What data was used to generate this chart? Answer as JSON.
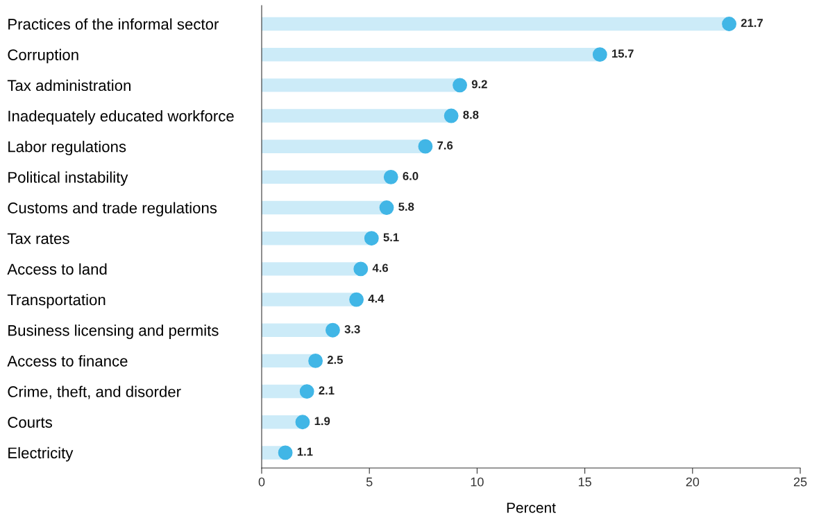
{
  "chart_data": {
    "type": "lollipop",
    "orientation": "horizontal",
    "categories": [
      "Practices of the informal sector",
      "Corruption",
      "Tax administration",
      "Inadequately educated workforce",
      "Labor regulations",
      "Political instability",
      "Customs and trade regulations",
      "Tax rates",
      "Access to land",
      "Transportation",
      "Business licensing and permits",
      "Access to finance",
      "Crime, theft, and disorder",
      "Courts",
      "Electricity"
    ],
    "series": [
      {
        "color": "#41b6e6",
        "values": [
          21.7,
          15.7,
          9.2,
          8.8,
          7.6,
          6.0,
          5.8,
          5.1,
          4.6,
          4.4,
          3.3,
          2.5,
          2.1,
          1.9,
          1.1
        ],
        "value_labels": [
          "21.7",
          "15.7",
          "9.2",
          "8.8",
          "7.6",
          "6.0",
          "5.8",
          "5.1",
          "4.6",
          "4.4",
          "3.3",
          "2.5",
          "2.1",
          "1.9",
          "1.1"
        ]
      }
    ],
    "xlabel": "Percent",
    "xlim": [
      0,
      25
    ],
    "xticks": [
      0,
      5,
      10,
      15,
      20,
      25
    ],
    "grid": false,
    "marker": "circle"
  }
}
